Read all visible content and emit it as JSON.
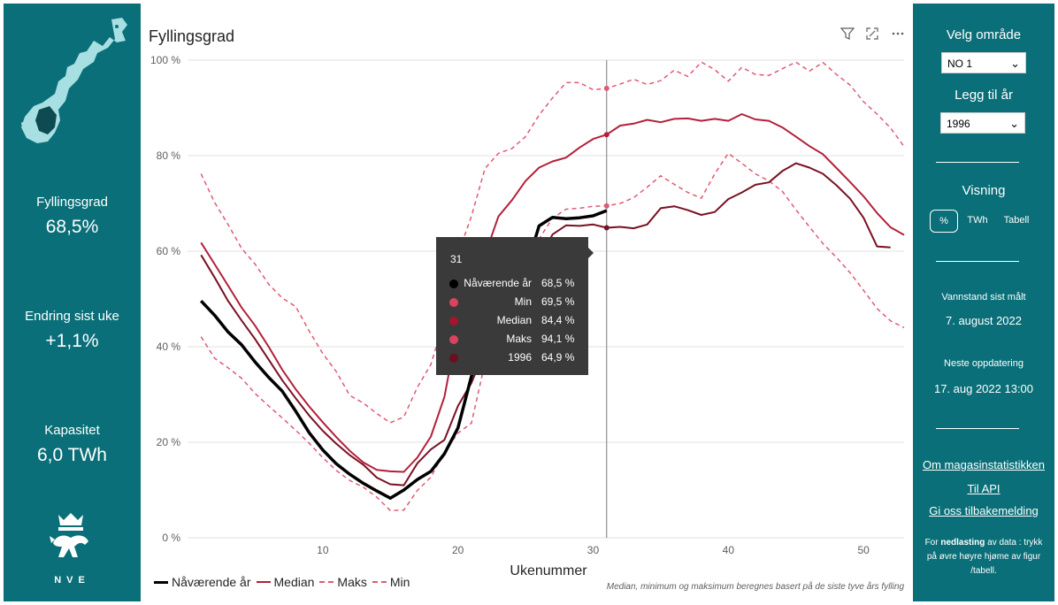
{
  "colors": {
    "teal": "#0a6f78",
    "current_year": "#000000",
    "median": "#b3203a",
    "maks": "#e05a74",
    "min": "#e05a74",
    "year_1996": "#7a1024",
    "tooltip_bg": "#3a3a3a"
  },
  "left": {
    "map_icon": "norway-map-icon",
    "kpis": [
      {
        "label": "Fyllingsgrad",
        "value": "68,5%"
      },
      {
        "label": "Endring sist uke",
        "value": "+1,1%"
      },
      {
        "label": "Kapasitet",
        "value": "6,0 TWh"
      }
    ],
    "logo_icon": "nve-coat-of-arms-icon",
    "logo_text": "NVE"
  },
  "chart_toolbar": {
    "filter_icon": "filter-icon",
    "focus_icon": "focus-mode-icon",
    "more_icon": "more-options-icon"
  },
  "chart_data": {
    "type": "line",
    "title": "Fyllingsgrad",
    "xlabel": "Ukenummer",
    "ylabel": "",
    "xlim": [
      0,
      53
    ],
    "ylim": [
      0,
      100
    ],
    "xticks": [
      10,
      20,
      30,
      40,
      50
    ],
    "ytick_labels": [
      "0 %",
      "20 %",
      "40 %",
      "60 %",
      "80 %",
      "100 %"
    ],
    "yticks": [
      0,
      20,
      40,
      60,
      80,
      100
    ],
    "grid": true,
    "legend_position": "bottom-left",
    "series": [
      {
        "name": "Nåværende år",
        "style": "solid-thick",
        "color_key": "current_year",
        "x": [
          1,
          2,
          3,
          4,
          5,
          6,
          7,
          8,
          9,
          10,
          11,
          12,
          13,
          14,
          15,
          16,
          17,
          18,
          19,
          20,
          21,
          22,
          23,
          24,
          25,
          26,
          27,
          28,
          29,
          30,
          31
        ],
        "y": [
          49.6,
          46.6,
          43.1,
          40.4,
          36.8,
          33.6,
          30.7,
          26.5,
          22.0,
          18.4,
          15.5,
          13.3,
          11.4,
          9.8,
          8.3,
          10.0,
          12.2,
          13.9,
          17.6,
          23.0,
          33.8,
          40.8,
          46.9,
          52.8,
          56.0,
          65.3,
          67.1,
          66.8,
          67.0,
          67.4,
          68.5
        ]
      },
      {
        "name": "Median",
        "style": "solid",
        "color_key": "median",
        "x": [
          1,
          2,
          3,
          4,
          5,
          6,
          7,
          8,
          9,
          10,
          11,
          12,
          13,
          14,
          15,
          16,
          17,
          18,
          19,
          20,
          21,
          22,
          23,
          24,
          25,
          26,
          27,
          28,
          29,
          30,
          31,
          32,
          33,
          34,
          35,
          36,
          37,
          38,
          39,
          40,
          41,
          42,
          43,
          44,
          45,
          46,
          47,
          48,
          49,
          50,
          51,
          52,
          53
        ],
        "y": [
          61.8,
          57.3,
          52.8,
          48.2,
          44.4,
          40.0,
          35.2,
          31.1,
          27.5,
          24.2,
          21.1,
          18.2,
          15.8,
          14.2,
          13.9,
          13.8,
          16.8,
          21.2,
          29.5,
          44.5,
          53.5,
          59.2,
          67.3,
          70.7,
          74.7,
          77.5,
          78.8,
          79.6,
          81.7,
          83.5,
          84.4,
          86.3,
          86.7,
          87.5,
          87.0,
          87.7,
          87.8,
          87.3,
          87.7,
          87.3,
          88.7,
          87.6,
          87.3,
          85.9,
          84.0,
          82.0,
          80.3,
          77.4,
          74.5,
          71.5,
          68.0,
          65.0,
          63.4
        ]
      },
      {
        "name": "Maks",
        "style": "dashed",
        "color_key": "maks",
        "x": [
          1,
          2,
          3,
          4,
          5,
          6,
          7,
          8,
          9,
          10,
          11,
          12,
          13,
          14,
          15,
          16,
          17,
          18,
          19,
          20,
          21,
          22,
          23,
          24,
          25,
          26,
          27,
          28,
          29,
          30,
          31,
          32,
          33,
          34,
          35,
          36,
          37,
          38,
          39,
          40,
          41,
          42,
          43,
          44,
          45,
          46,
          47,
          48,
          49,
          50,
          51,
          52,
          53
        ],
        "y": [
          76.2,
          70.2,
          65.6,
          60.6,
          57.3,
          53.1,
          50.2,
          48.4,
          43.3,
          38.6,
          34.8,
          29.8,
          28.2,
          26.0,
          24.1,
          25.3,
          31.5,
          36.3,
          45.8,
          59.4,
          67.3,
          77.3,
          80.5,
          81.5,
          84.0,
          88.5,
          92.1,
          95.3,
          95.3,
          93.8,
          94.1,
          95.0,
          96.0,
          94.9,
          95.7,
          97.9,
          96.6,
          99.6,
          98.0,
          95.6,
          98.5,
          97.0,
          96.8,
          98.2,
          99.6,
          97.7,
          99.5,
          97.0,
          94.8,
          91.3,
          88.7,
          85.8,
          81.9
        ]
      },
      {
        "name": "Min",
        "style": "dashed",
        "color_key": "min",
        "x": [
          1,
          2,
          3,
          4,
          5,
          6,
          7,
          8,
          9,
          10,
          11,
          12,
          13,
          14,
          15,
          16,
          17,
          18,
          19,
          20,
          21,
          22,
          23,
          24,
          25,
          26,
          27,
          28,
          29,
          30,
          31,
          32,
          33,
          34,
          35,
          36,
          37,
          38,
          39,
          40,
          41,
          42,
          43,
          44,
          45,
          46,
          47,
          48,
          49,
          50,
          51,
          52,
          53
        ],
        "y": [
          42.1,
          37.6,
          35.6,
          33.4,
          30.2,
          27.6,
          25.1,
          22.5,
          19.8,
          16.8,
          14.1,
          12.0,
          10.6,
          8.5,
          5.7,
          5.8,
          9.9,
          12.7,
          18.0,
          21.9,
          24.0,
          36.6,
          46.2,
          53.6,
          57.4,
          62.6,
          66.9,
          68.8,
          69.0,
          69.4,
          69.5,
          70.0,
          71.2,
          73.4,
          75.8,
          74.0,
          72.3,
          71.1,
          76.2,
          80.5,
          78.4,
          76.2,
          74.7,
          72.5,
          68.7,
          65.1,
          61.6,
          58.7,
          55.5,
          51.8,
          48.0,
          45.4,
          44.0
        ]
      },
      {
        "name": "1996",
        "style": "solid",
        "color_key": "year_1996",
        "x": [
          1,
          2,
          3,
          4,
          5,
          6,
          7,
          8,
          9,
          10,
          11,
          12,
          13,
          14,
          15,
          16,
          17,
          18,
          19,
          20,
          21,
          22,
          23,
          24,
          25,
          26,
          27,
          28,
          29,
          30,
          31,
          32,
          33,
          34,
          35,
          36,
          37,
          38,
          39,
          40,
          41,
          42,
          43,
          44,
          45,
          46,
          47,
          48,
          49,
          50,
          51,
          52
        ],
        "y": [
          59.2,
          54.5,
          49.6,
          45.5,
          41.6,
          37.3,
          33.0,
          29.2,
          25.6,
          22.4,
          19.7,
          17.3,
          15.3,
          12.6,
          11.2,
          11.0,
          15.6,
          18.5,
          20.5,
          27.6,
          32.4,
          39.3,
          46.7,
          53.3,
          57.4,
          58.1,
          63.5,
          65.4,
          65.3,
          65.6,
          64.9,
          65.1,
          64.8,
          65.6,
          69.0,
          69.4,
          68.6,
          67.6,
          68.2,
          70.9,
          72.3,
          73.9,
          74.4,
          76.8,
          78.4,
          77.5,
          76.2,
          73.8,
          71.0,
          67.0,
          61.0,
          60.8
        ]
      }
    ],
    "legend": [
      "Nåværende år",
      "Median",
      "Maks",
      "Min"
    ],
    "crosshair_x": 31,
    "tooltip": {
      "header": "31",
      "rows": [
        {
          "label": "Nåværende år",
          "value": "68,5 %",
          "color": "#000000"
        },
        {
          "label": "Min",
          "value": "69,5 %",
          "color": "#d9435e"
        },
        {
          "label": "Median",
          "value": "84,4 %",
          "color": "#a8132e"
        },
        {
          "label": "Maks",
          "value": "94,1 %",
          "color": "#d9435e"
        },
        {
          "label": "1996",
          "value": "64,9 %",
          "color": "#6b0e1e"
        }
      ]
    },
    "footnote": "Median, minimum og maksimum beregnes basert på de siste tyve års fylling"
  },
  "right": {
    "area_label": "Velg område",
    "area_value": "NO 1",
    "year_label": "Legg til år",
    "year_value": "1996",
    "view_label": "Visning",
    "view_options": [
      "%",
      "TWh",
      "Tabell"
    ],
    "water_label": "Vannstand sist målt",
    "water_date": "7. august 2022",
    "next_label": "Neste oppdatering",
    "next_date": "17. aug 2022 13:00",
    "links": [
      "Om magasinstatistikken",
      "Til API",
      "Gi oss tilbakemelding"
    ],
    "note_prefix": "For ",
    "note_bold": "nedlasting",
    "note_rest": " av data : trykk på øvre høyre hjøme av figur /tabell."
  }
}
